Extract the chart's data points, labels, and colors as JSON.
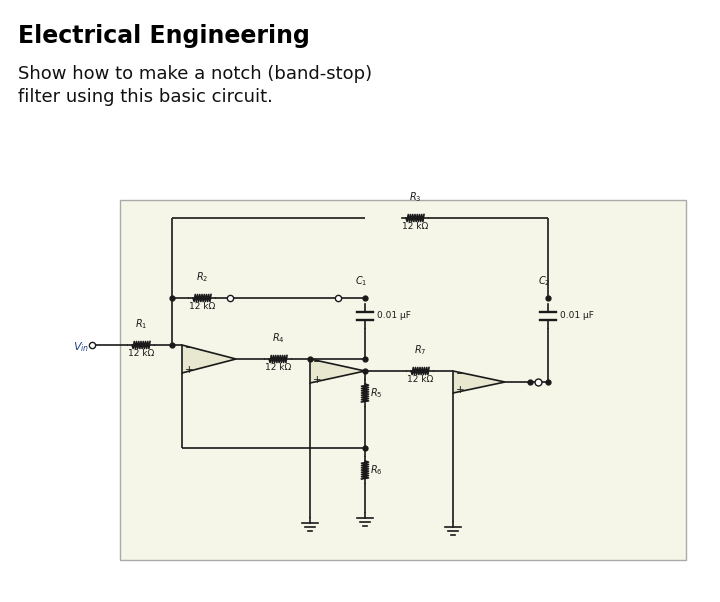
{
  "title": "Electrical Engineering",
  "subtitle_line1": "Show how to make a notch (band-stop)",
  "subtitle_line2": "filter using this basic circuit.",
  "bg_color": "#ffffff",
  "box_bg": "#f5f5e8",
  "box_edge": "#aaaaaa",
  "wire_color": "#1a1a1a",
  "comp_color": "#1a1a1a",
  "opamp_fill": "#e8e8d0",
  "title_fontsize": 17,
  "subtitle_fontsize": 13,
  "label_fs": 7,
  "lw": 1.2
}
